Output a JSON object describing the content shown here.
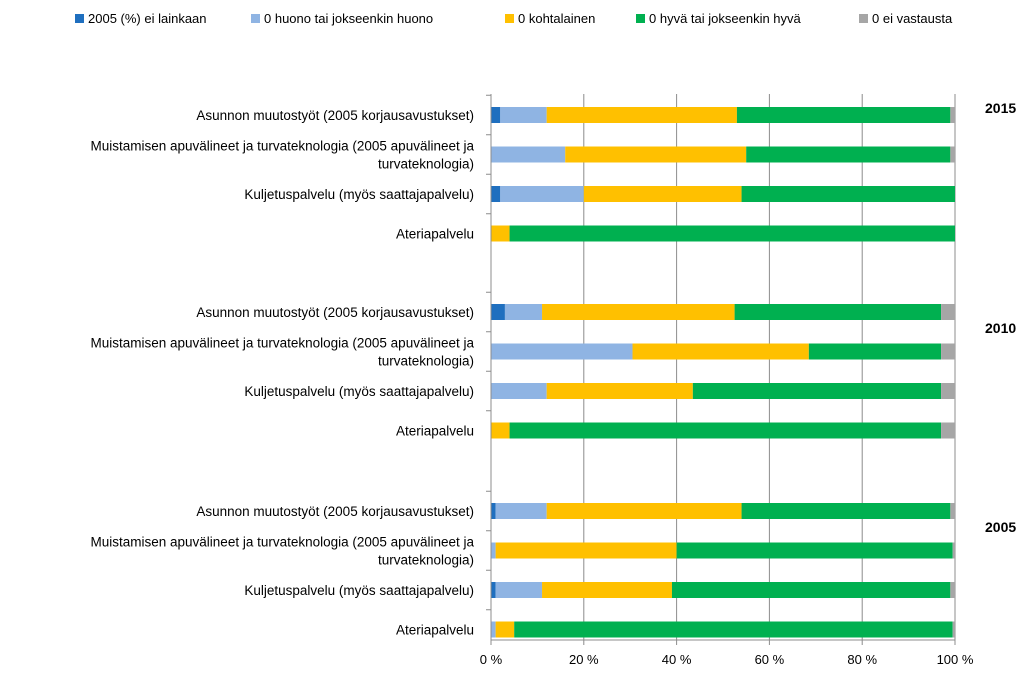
{
  "chart_data": {
    "type": "bar",
    "orientation": "horizontal",
    "stacked": "percent",
    "legend_position": "top",
    "grid": "vertical",
    "xlim": [
      0,
      100
    ],
    "x_ticks": [
      "0 %",
      "20 %",
      "40 %",
      "60 %",
      "80 %",
      "100 %"
    ],
    "series": [
      {
        "name": "2005 (%) ei lainkaan",
        "color": "#1f6fbf"
      },
      {
        "name": "0 huono tai jokseenkin huono",
        "color": "#8fb4e3"
      },
      {
        "name": "0 kohtalainen",
        "color": "#ffc000"
      },
      {
        "name": "0 hyvä tai jokseenkin hyvä",
        "color": "#00b050"
      },
      {
        "name": "0 ei vastausta",
        "color": "#a6a6a6"
      }
    ],
    "groups": [
      {
        "label": "2015",
        "bars": [
          {
            "category": [
              "Asunnon muutostyöt (2005 korjausavustukset)"
            ],
            "values": [
              2,
              10,
              41,
              46,
              1
            ]
          },
          {
            "category": [
              "Muistamisen apuvälineet ja turvateknologia (2005 apuvälineet ja",
              "turvateknologia)"
            ],
            "values": [
              0,
              16,
              39,
              44,
              1
            ]
          },
          {
            "category": [
              "Kuljetuspalvelu (myös saattajapalvelu)"
            ],
            "values": [
              2,
              18,
              34,
              46,
              0
            ]
          },
          {
            "category": [
              "Ateriapalvelu"
            ],
            "values": [
              0,
              0,
              4,
              96,
              0
            ]
          }
        ]
      },
      {
        "label": "2010",
        "bars": [
          {
            "category": [
              "Asunnon muutostyöt (2005 korjausavustukset)"
            ],
            "values": [
              3,
              8,
              41.5,
              44.5,
              3
            ]
          },
          {
            "category": [
              "Muistamisen apuvälineet ja turvateknologia (2005 apuvälineet ja",
              "turvateknologia)"
            ],
            "values": [
              0,
              30.5,
              38,
              28.5,
              3
            ]
          },
          {
            "category": [
              "Kuljetuspalvelu (myös saattajapalvelu)"
            ],
            "values": [
              0,
              12,
              31.5,
              53.5,
              3
            ]
          },
          {
            "category": [
              "Ateriapalvelu"
            ],
            "values": [
              0,
              0,
              4,
              93,
              3
            ]
          }
        ]
      },
      {
        "label": "2005",
        "bars": [
          {
            "category": [
              "Asunnon muutostyöt (2005 korjausavustukset)"
            ],
            "values": [
              1,
              11,
              42,
              45,
              1
            ]
          },
          {
            "category": [
              "Muistamisen apuvälineet ja turvateknologia (2005 apuvälineet ja",
              "turvateknologia)"
            ],
            "values": [
              0,
              1,
              39,
              59.5,
              0.5
            ]
          },
          {
            "category": [
              "Kuljetuspalvelu (myös saattajapalvelu)"
            ],
            "values": [
              1,
              10,
              28,
              60,
              1
            ]
          },
          {
            "category": [
              "Ateriapalvelu"
            ],
            "values": [
              0,
              1,
              4,
              94.5,
              0.5
            ]
          }
        ]
      }
    ]
  }
}
